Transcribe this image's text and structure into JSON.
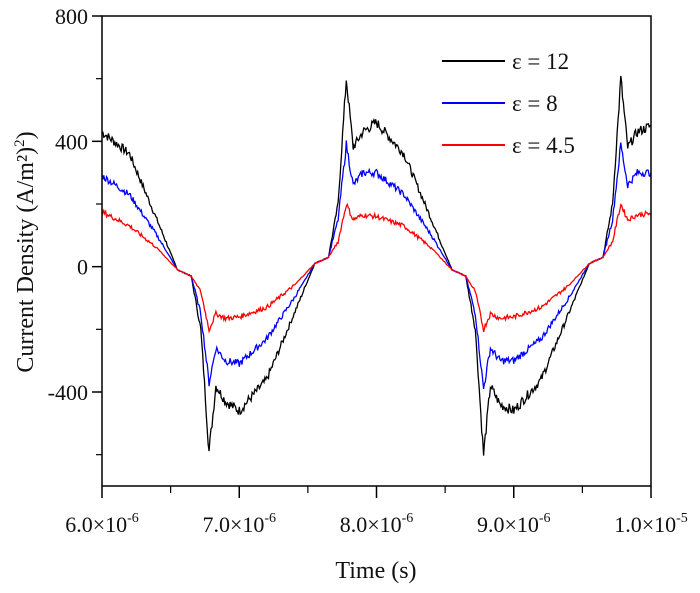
{
  "chart_data": {
    "type": "line",
    "title": "",
    "xlabel": "Time (s)",
    "ylabel": "Current Density (A/m²)",
    "x_unit_multiplier": "×10^-6 s",
    "xlim": [
      6.0,
      10.0
    ],
    "ylim": [
      -700,
      800
    ],
    "xticks": [
      6,
      7,
      8,
      9,
      10
    ],
    "xtick_labels": [
      {
        "m": "6.0×10",
        "e": "-6"
      },
      {
        "m": "7.0×10",
        "e": "-6"
      },
      {
        "m": "8.0×10",
        "e": "-6"
      },
      {
        "m": "9.0×10",
        "e": "-6"
      },
      {
        "m": "1.0×10",
        "e": "-5"
      }
    ],
    "yticks": [
      -400,
      0,
      400,
      800
    ],
    "ytick_labels": [
      "-400",
      "0",
      "400",
      "800"
    ],
    "legend_position": "top-right",
    "grid": false,
    "x": [
      6.0,
      6.2,
      6.4,
      6.55,
      6.65,
      6.72,
      6.78,
      6.83,
      6.9,
      7.0,
      7.2,
      7.4,
      7.55,
      7.65,
      7.72,
      7.78,
      7.83,
      7.9,
      8.0,
      8.2,
      8.4,
      8.55,
      8.65,
      8.72,
      8.78,
      8.83,
      8.9,
      9.0,
      9.2,
      9.4,
      9.55,
      9.65,
      9.72,
      9.78,
      9.83,
      9.9,
      10.0
    ],
    "series": [
      {
        "name": "ε = 12",
        "color": "#000000",
        "values": [
          430,
          360,
          150,
          -10,
          -30,
          -200,
          -590,
          -380,
          -430,
          -460,
          -360,
          -150,
          10,
          30,
          200,
          600,
          380,
          430,
          460,
          360,
          150,
          -10,
          -30,
          -200,
          -600,
          -380,
          -440,
          -460,
          -360,
          -150,
          10,
          30,
          200,
          600,
          380,
          430,
          450
        ]
      },
      {
        "name": "ε = 8",
        "color": "#0000ff",
        "values": [
          290,
          230,
          100,
          -10,
          -30,
          -150,
          -370,
          -260,
          -300,
          -310,
          -230,
          -100,
          10,
          30,
          150,
          390,
          260,
          300,
          300,
          230,
          100,
          -10,
          -30,
          -150,
          -390,
          -260,
          -300,
          -300,
          -230,
          -100,
          10,
          30,
          150,
          390,
          260,
          300,
          300
        ]
      },
      {
        "name": "ε = 4.5",
        "color": "#ff0000",
        "values": [
          175,
          130,
          60,
          -10,
          -30,
          -80,
          -200,
          -150,
          -165,
          -160,
          -130,
          -60,
          10,
          30,
          80,
          200,
          150,
          165,
          160,
          130,
          60,
          -10,
          -30,
          -80,
          -200,
          -150,
          -165,
          -160,
          -130,
          -60,
          10,
          30,
          80,
          200,
          150,
          165,
          170
        ]
      }
    ]
  }
}
